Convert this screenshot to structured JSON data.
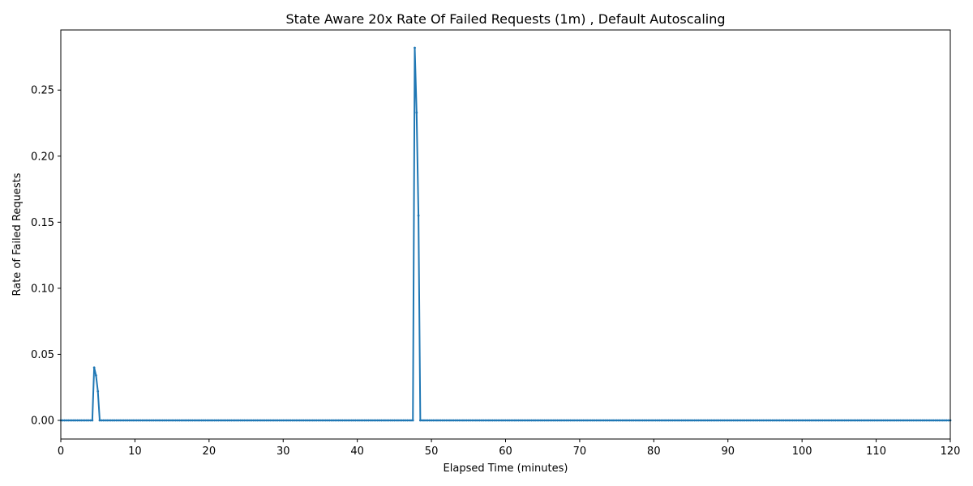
{
  "chart_data": {
    "type": "line",
    "title": "State Aware 20x Rate Of Failed Requests (1m) , Default Autoscaling",
    "xlabel": "Elapsed Time (minutes)",
    "ylabel": "Rate of Failed Requests",
    "xlim": [
      0,
      120
    ],
    "ylim": [
      -0.0141,
      0.2955
    ],
    "xticks": [
      0,
      10,
      20,
      30,
      40,
      50,
      60,
      70,
      80,
      90,
      100,
      110,
      120
    ],
    "yticks": [
      0.0,
      0.05,
      0.1,
      0.15,
      0.2,
      0.25
    ],
    "ytick_labels": [
      "0.00",
      "0.05",
      "0.10",
      "0.15",
      "0.20",
      "0.25"
    ],
    "grid": false,
    "color": "#1f77b4",
    "series": [
      {
        "marker": "dot",
        "x": [
          0,
          4.25,
          4.5,
          4.75,
          5.0,
          5.25,
          5.5,
          47.5,
          47.75,
          48.0,
          48.25,
          48.5,
          48.75,
          120
        ],
        "y": [
          0.0,
          0.0,
          0.04,
          0.034,
          0.022,
          0.0,
          0.0,
          0.0,
          0.282,
          0.233,
          0.155,
          0.0,
          0.0,
          0.0
        ]
      }
    ]
  }
}
